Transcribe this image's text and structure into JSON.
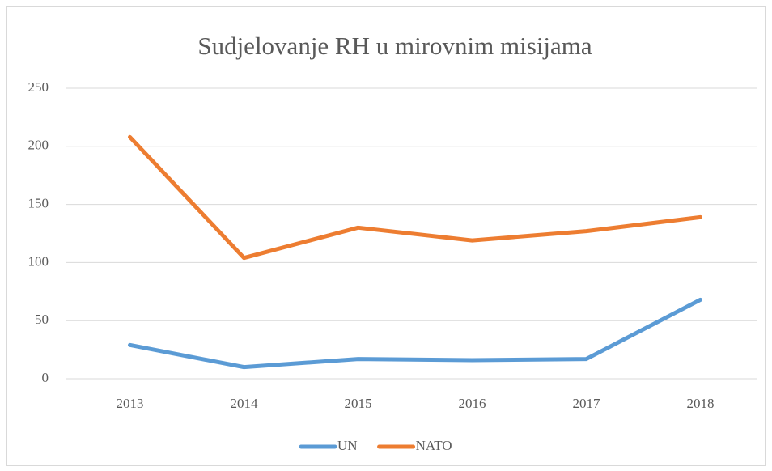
{
  "chart_data": {
    "type": "line",
    "title": "Sudjelovanje  RH u mirovnim  misijama",
    "categories": [
      "2013",
      "2014",
      "2015",
      "2016",
      "2017",
      "2018"
    ],
    "series": [
      {
        "name": "UN",
        "color": "#5b9bd5",
        "values": [
          29,
          10,
          17,
          16,
          17,
          68
        ]
      },
      {
        "name": "NATO",
        "color": "#ed7d31",
        "values": [
          208,
          104,
          130,
          119,
          127,
          139
        ]
      }
    ],
    "ylim": [
      0,
      250
    ],
    "yticks": [
      0,
      50,
      100,
      150,
      200,
      250
    ],
    "grid": true,
    "legend": "bottom"
  }
}
